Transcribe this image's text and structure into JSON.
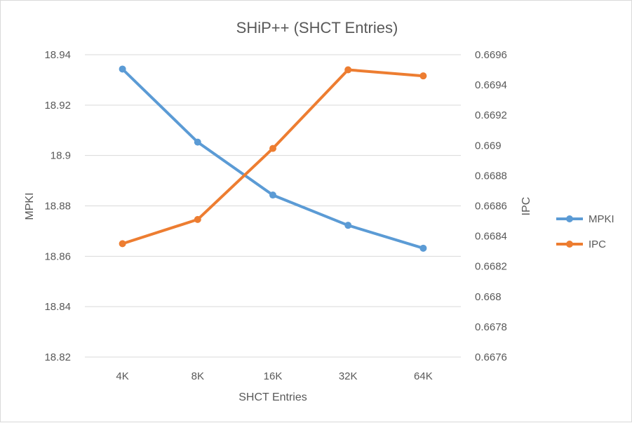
{
  "chart_data": {
    "type": "line",
    "title": "SHiP++ (SHCT Entries)",
    "xlabel": "SHCT Entries",
    "ylabel": "MPKI",
    "y2label": "IPC",
    "categories": [
      "4K",
      "8K",
      "16K",
      "32K",
      "64K"
    ],
    "ylim": [
      18.82,
      18.94
    ],
    "yticks": [
      "18.82",
      "18.84",
      "18.86",
      "18.88",
      "18.9",
      "18.92",
      "18.94"
    ],
    "y2lim": [
      0.6676,
      0.6696
    ],
    "y2ticks": [
      "0.6676",
      "0.6678",
      "0.668",
      "0.6682",
      "0.6684",
      "0.6686",
      "0.6688",
      "0.669",
      "0.6692",
      "0.6694",
      "0.6696"
    ],
    "grid": true,
    "legend_position": "right",
    "series": [
      {
        "name": "MPKI",
        "axis": "left",
        "color": "#5b9bd5",
        "values": [
          18.9343,
          18.9053,
          18.8843,
          18.8723,
          18.8632
        ]
      },
      {
        "name": "IPC",
        "axis": "right",
        "color": "#ed7d31",
        "values": [
          0.66835,
          0.66851,
          0.66898,
          0.6695,
          0.66946
        ]
      }
    ]
  }
}
